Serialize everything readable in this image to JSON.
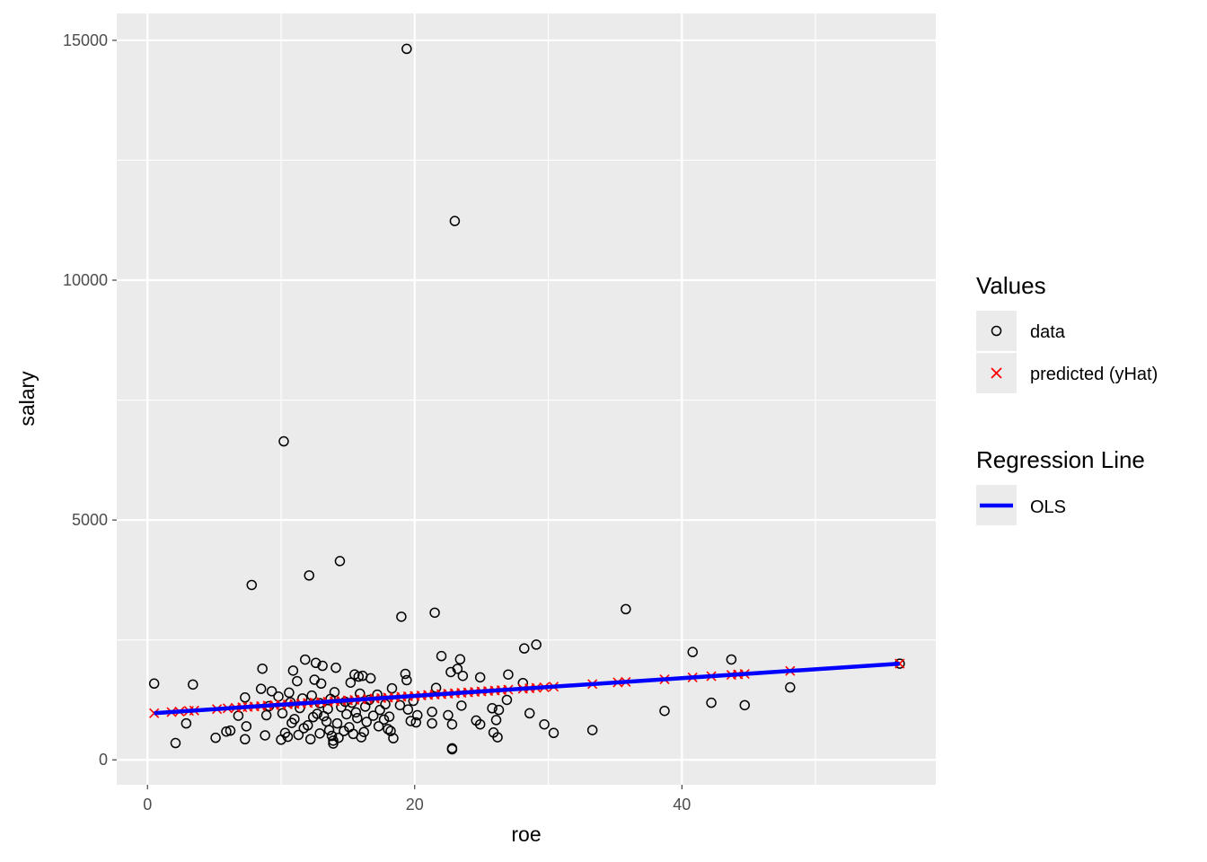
{
  "chart_data": {
    "type": "scatter",
    "xlabel": "roe",
    "ylabel": "salary",
    "xlim": [
      -2.3,
      59
    ],
    "ylim": [
      -520,
      15560
    ],
    "x_ticks": [
      0,
      20,
      40
    ],
    "y_ticks": [
      0,
      5000,
      10000,
      15000
    ],
    "grid": true,
    "panel_background": "#ebebeb",
    "grid_color": "#ffffff",
    "legend_position": "right",
    "legends": [
      {
        "title": "Values",
        "entries": [
          {
            "label": "data",
            "shape": "open-circle",
            "color": "#000000"
          },
          {
            "label": "predicted (yHat)",
            "shape": "cross",
            "color": "#ff0000"
          }
        ]
      },
      {
        "title": "Regression Line",
        "entries": [
          {
            "label": "OLS",
            "shape": "line",
            "color": "#0000ff"
          }
        ]
      }
    ],
    "regression_line": {
      "name": "OLS",
      "color": "#0000ff",
      "intercept": 963.19,
      "slope": 18.5,
      "x_range": [
        0.5,
        56.3
      ]
    },
    "series": [
      {
        "name": "data",
        "marker": "open-circle",
        "color": "#000000",
        "points": [
          [
            19.4,
            14822
          ],
          [
            23.0,
            11233
          ],
          [
            10.2,
            6640
          ],
          [
            14.4,
            4143
          ],
          [
            12.1,
            3844
          ],
          [
            7.8,
            3646
          ],
          [
            35.8,
            3142
          ],
          [
            21.5,
            3068
          ],
          [
            19.0,
            2983
          ],
          [
            29.1,
            2402
          ],
          [
            28.2,
            2322
          ],
          [
            40.8,
            2248
          ],
          [
            22.0,
            2163
          ],
          [
            43.7,
            2092
          ],
          [
            23.4,
            2095
          ],
          [
            11.8,
            2090
          ],
          [
            12.6,
            2021
          ],
          [
            13.1,
            1960
          ],
          [
            14.1,
            1920
          ],
          [
            8.6,
            1900
          ],
          [
            23.2,
            1898
          ],
          [
            10.9,
            1860
          ],
          [
            22.7,
            1830
          ],
          [
            19.3,
            1792
          ],
          [
            15.5,
            1780
          ],
          [
            27.0,
            1778
          ],
          [
            16.1,
            1752
          ],
          [
            23.6,
            1750
          ],
          [
            15.8,
            1735
          ],
          [
            24.9,
            1720
          ],
          [
            16.7,
            1700
          ],
          [
            12.5,
            1670
          ],
          [
            19.4,
            1660
          ],
          [
            11.2,
            1640
          ],
          [
            0.5,
            1590
          ],
          [
            3.4,
            1570
          ],
          [
            15.2,
            1610
          ],
          [
            13.0,
            1590
          ],
          [
            28.1,
            1600
          ],
          [
            48.1,
            1510
          ],
          [
            18.3,
            1490
          ],
          [
            21.6,
            1500
          ],
          [
            8.5,
            1480
          ],
          [
            9.3,
            1430
          ],
          [
            14.0,
            1410
          ],
          [
            10.6,
            1400
          ],
          [
            15.9,
            1380
          ],
          [
            17.2,
            1360
          ],
          [
            12.3,
            1340
          ],
          [
            9.8,
            1320
          ],
          [
            7.3,
            1300
          ],
          [
            11.6,
            1280
          ],
          [
            13.7,
            1270
          ],
          [
            16.6,
            1250
          ],
          [
            19.9,
            1230
          ],
          [
            14.8,
            1210
          ],
          [
            26.9,
            1250
          ],
          [
            10.7,
            1200
          ],
          [
            15.3,
            1190
          ],
          [
            42.2,
            1190
          ],
          [
            44.7,
            1140
          ],
          [
            12.9,
            1180
          ],
          [
            17.8,
            1160
          ],
          [
            18.9,
            1140
          ],
          [
            23.5,
            1130
          ],
          [
            9.1,
            1120
          ],
          [
            16.3,
            1110
          ],
          [
            14.5,
            1100
          ],
          [
            11.4,
            1080
          ],
          [
            25.8,
            1075
          ],
          [
            13.5,
            1060
          ],
          [
            19.5,
            1050
          ],
          [
            17.4,
            1040
          ],
          [
            21.3,
            1000
          ],
          [
            15.6,
            990
          ],
          [
            38.7,
            1020
          ],
          [
            10.1,
            970
          ],
          [
            12.7,
            960
          ],
          [
            26.3,
            1040
          ],
          [
            28.6,
            970
          ],
          [
            20.2,
            930
          ],
          [
            14.9,
            950
          ],
          [
            16.9,
            920
          ],
          [
            22.5,
            930
          ],
          [
            6.8,
            920
          ],
          [
            8.9,
            930
          ],
          [
            13.2,
            910
          ],
          [
            18.1,
            900
          ],
          [
            12.4,
            890
          ],
          [
            15.7,
            870
          ],
          [
            11.0,
            850
          ],
          [
            17.7,
            840
          ],
          [
            24.6,
            820
          ],
          [
            19.7,
            810
          ],
          [
            13.4,
            800
          ],
          [
            16.4,
            790
          ],
          [
            20.1,
            780
          ],
          [
            10.8,
            770
          ],
          [
            14.2,
            760
          ],
          [
            21.3,
            760
          ],
          [
            22.8,
            740
          ],
          [
            26.1,
            830
          ],
          [
            2.9,
            760
          ],
          [
            29.7,
            740
          ],
          [
            12.0,
            720
          ],
          [
            17.3,
            700
          ],
          [
            15.1,
            680
          ],
          [
            11.7,
            660
          ],
          [
            18.0,
            640
          ],
          [
            13.6,
            620
          ],
          [
            14.7,
            600
          ],
          [
            7.4,
            700
          ],
          [
            24.9,
            740
          ],
          [
            6.2,
            610
          ],
          [
            5.9,
            590
          ],
          [
            16.2,
            580
          ],
          [
            10.3,
            560
          ],
          [
            12.9,
            550
          ],
          [
            15.4,
            540
          ],
          [
            18.2,
            600
          ],
          [
            25.9,
            570
          ],
          [
            30.4,
            560
          ],
          [
            33.3,
            620
          ],
          [
            11.3,
            520
          ],
          [
            13.8,
            500
          ],
          [
            10.5,
            480
          ],
          [
            16.0,
            470
          ],
          [
            14.3,
            460
          ],
          [
            18.4,
            450
          ],
          [
            12.2,
            430
          ],
          [
            7.3,
            430
          ],
          [
            5.1,
            460
          ],
          [
            26.2,
            470
          ],
          [
            8.8,
            510
          ],
          [
            10.0,
            420
          ],
          [
            13.9,
            400
          ],
          [
            2.1,
            350
          ],
          [
            13.9,
            340
          ],
          [
            22.8,
            240
          ],
          [
            22.8,
            220
          ]
        ]
      },
      {
        "name": "predicted (yHat)",
        "marker": "cross",
        "color": "#ff0000",
        "points": [
          [
            0.5,
            972
          ],
          [
            1.8,
            996
          ],
          [
            2.4,
            1007
          ],
          [
            3.1,
            1020
          ],
          [
            3.5,
            1028
          ],
          [
            5.2,
            1059
          ],
          [
            6.0,
            1074
          ],
          [
            6.6,
            1085
          ],
          [
            7.1,
            1095
          ],
          [
            7.5,
            1102
          ],
          [
            8.0,
            1111
          ],
          [
            8.5,
            1120
          ],
          [
            9.0,
            1130
          ],
          [
            9.5,
            1139
          ],
          [
            10.0,
            1148
          ],
          [
            10.5,
            1157
          ],
          [
            11.0,
            1167
          ],
          [
            11.5,
            1176
          ],
          [
            12.0,
            1185
          ],
          [
            12.5,
            1194
          ],
          [
            13.0,
            1204
          ],
          [
            13.5,
            1213
          ],
          [
            14.0,
            1222
          ],
          [
            14.5,
            1231
          ],
          [
            15.0,
            1241
          ],
          [
            15.5,
            1250
          ],
          [
            16.0,
            1259
          ],
          [
            16.5,
            1268
          ],
          [
            17.0,
            1278
          ],
          [
            17.5,
            1287
          ],
          [
            18.0,
            1296
          ],
          [
            18.5,
            1305
          ],
          [
            19.0,
            1315
          ],
          [
            19.5,
            1324
          ],
          [
            20.0,
            1333
          ],
          [
            20.5,
            1342
          ],
          [
            21.0,
            1352
          ],
          [
            21.5,
            1361
          ],
          [
            22.0,
            1370
          ],
          [
            22.5,
            1379
          ],
          [
            23.0,
            1389
          ],
          [
            23.5,
            1398
          ],
          [
            24.0,
            1407
          ],
          [
            24.5,
            1416
          ],
          [
            25.0,
            1426
          ],
          [
            25.5,
            1435
          ],
          [
            26.0,
            1444
          ],
          [
            26.5,
            1453
          ],
          [
            27.0,
            1463
          ],
          [
            28.1,
            1483
          ],
          [
            28.6,
            1492
          ],
          [
            29.1,
            1501
          ],
          [
            29.7,
            1513
          ],
          [
            30.4,
            1526
          ],
          [
            33.3,
            1579
          ],
          [
            35.2,
            1614
          ],
          [
            35.8,
            1625
          ],
          [
            38.7,
            1679
          ],
          [
            40.8,
            1718
          ],
          [
            42.2,
            1744
          ],
          [
            43.7,
            1772
          ],
          [
            44.2,
            1781
          ],
          [
            44.7,
            1790
          ],
          [
            48.1,
            1853
          ],
          [
            56.3,
            2005
          ]
        ]
      }
    ],
    "outlier_extra_point": [
      56.3,
      2005
    ]
  }
}
